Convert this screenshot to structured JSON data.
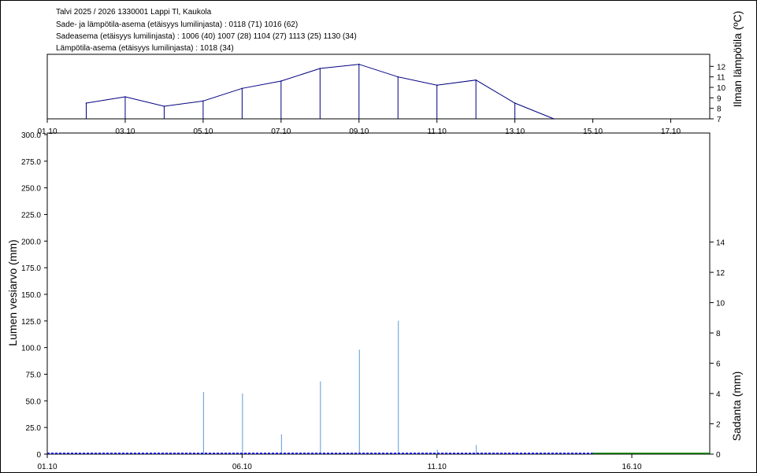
{
  "header": {
    "line1": "Talvi 2025 / 2026 1330001 Lappi Tl, Kaukola",
    "line2": "Sade- ja lämpötila-asema (etäisyys lumilinjasta) :  0118 (71) 1016 (62)",
    "line3": "Sadeasema (etäisyys lumilinjasta) :  1006 (40) 1007 (28) 1104 (27) 1113 (25) 1130 (34)",
    "line4": "Lämpötila-asema (etäisyys lumilinjasta) :  1018 (34)"
  },
  "chart_data": [
    {
      "type": "line",
      "name": "temperature",
      "ylabel": "Ilman lämpötila (ºC)",
      "x_tick_labels": [
        "01.10",
        "03.10",
        "05.10",
        "07.10",
        "09.10",
        "11.10",
        "13.10",
        "15.10",
        "17.10"
      ],
      "x_tick_days": [
        1,
        3,
        5,
        7,
        9,
        11,
        13,
        15,
        17
      ],
      "y_ticks": [
        7,
        8,
        9,
        10,
        11,
        12
      ],
      "ylim": [
        7,
        13
      ],
      "xlim": [
        1,
        18
      ],
      "x": [
        2,
        3,
        4,
        5,
        6,
        7,
        8,
        9,
        10,
        11,
        12,
        13,
        14
      ],
      "y": [
        8.5,
        9.1,
        8.2,
        8.7,
        9.9,
        10.6,
        11.8,
        12.2,
        11.0,
        10.2,
        10.7,
        8.5,
        7.0
      ],
      "color": "#000080"
    },
    {
      "type": "line",
      "name": "snow-water-equivalent",
      "ylabel": "Lumen vesiarvo (mm)",
      "y_ticks": [
        "0",
        "25.0",
        "50.0",
        "75.0",
        "100.0",
        "125.0",
        "150.0",
        "175.0",
        "200.0",
        "225.0",
        "250.0",
        "275.0",
        "300.0"
      ],
      "ylim": [
        0,
        300
      ],
      "x_tick_labels": [
        "01.10",
        "06.10",
        "11.10",
        "16.10"
      ],
      "x_tick_days": [
        1,
        6,
        11,
        16
      ],
      "xlim": [
        1,
        18
      ],
      "observed_until_day": 15,
      "values": [
        0,
        0
      ],
      "observed_color": "#0000ff",
      "forecast_color": "#008000"
    },
    {
      "type": "bar",
      "name": "precipitation",
      "ylabel": "Sadanta (mm)",
      "y_ticks": [
        0,
        2,
        4,
        6,
        8,
        10,
        12,
        14
      ],
      "ylim": [
        0,
        21.2
      ],
      "x": [
        5,
        6,
        7,
        8,
        9,
        10,
        11,
        12,
        13
      ],
      "values": [
        4.1,
        4.0,
        1.3,
        4.8,
        6.9,
        8.8,
        0.3,
        0.6,
        0.1
      ],
      "color": "#5b9bd5"
    }
  ]
}
